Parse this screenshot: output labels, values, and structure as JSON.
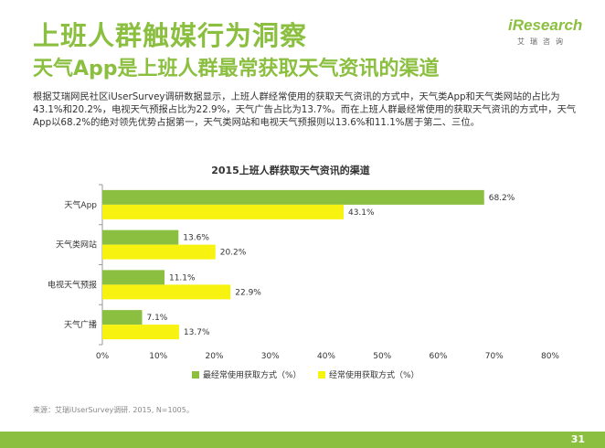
{
  "header": {
    "title": "上班人群触媒行为洞察",
    "subtitle": "天气App是上班人群最常获取天气资讯的渠道"
  },
  "logo": {
    "word_prefix": "i",
    "word_rest": "Research",
    "chinese": "艾瑞咨询"
  },
  "description": "根据艾瑞网民社区iUserSurvey调研数据显示，上班人群经常使用的获取天气资讯的方式中，天气类App和天气类网站的占比为43.1%和20.2%，电视天气预报占比为22.9%，天气广告占比为13.7%。而在上班人群最经常使用的获取天气资讯的方式中，天气App以68.2%的绝对领先优势占据第一，天气类网站和电视天气预报则以13.6%和11.1%居于第二、三位。",
  "chart_data": {
    "type": "bar",
    "orientation": "horizontal",
    "title": "2015上班人群获取天气资讯的渠道",
    "categories": [
      "天气App",
      "天气类网站",
      "电视天气预报",
      "天气广播"
    ],
    "series": [
      {
        "name": "最经常使用获取方式（%）",
        "values": [
          68.2,
          13.6,
          11.1,
          7.1
        ],
        "color": "#8bbf3f"
      },
      {
        "name": "经常使用获取方式（%）",
        "values": [
          43.1,
          20.2,
          22.9,
          13.7
        ],
        "color": "#f7f20f"
      }
    ],
    "xlim": [
      0,
      80
    ],
    "xticks": [
      0,
      10,
      20,
      30,
      40,
      50,
      60,
      70,
      80
    ],
    "tick_suffix": "%",
    "value_suffix": "%",
    "legend_position": "bottom"
  },
  "source": "来源：艾瑞iUserSurvey调研. 2015, N=1005。",
  "page_number": "31",
  "colors": {
    "brand_green": "#8bbf3f",
    "series_yellow": "#f7f20f",
    "footer_bar": "#8bbf3f"
  }
}
